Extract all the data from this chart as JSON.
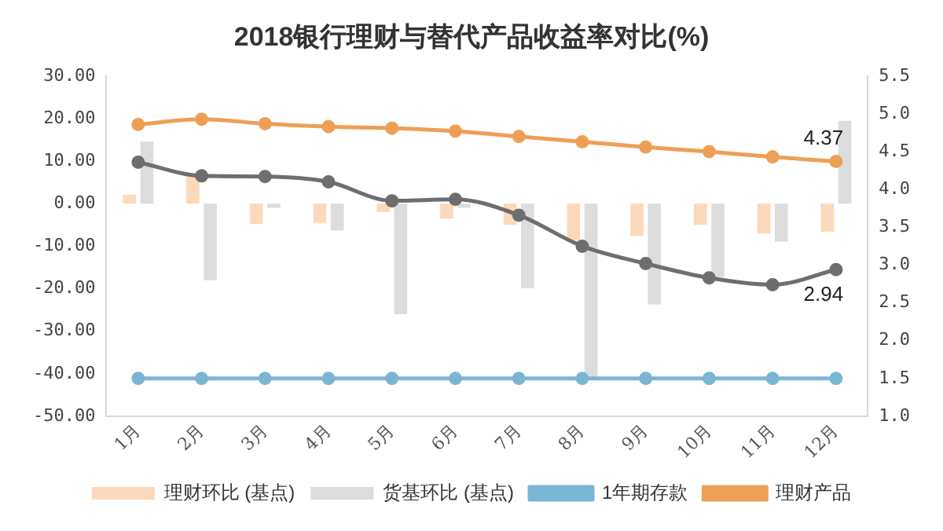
{
  "chart_data": {
    "type": "bar",
    "title": "2018银行理财与替代产品收益率对比(%)",
    "categories": [
      "1月",
      "2月",
      "3月",
      "4月",
      "5月",
      "6月",
      "7月",
      "8月",
      "9月",
      "10月",
      "11月",
      "12月"
    ],
    "series": [
      {
        "name": "理财环比 (基点)",
        "color": "#fbd9ba",
        "values": [
          2.1,
          6.6,
          -4.8,
          -4.5,
          -2,
          -3.5,
          -5,
          -9,
          -7.6,
          -5,
          -7,
          -6.6
        ]
      },
      {
        "name": "货基环比 (基点)",
        "color": "#dddddd",
        "values": [
          14.6,
          -18,
          -1,
          -6.3,
          -26,
          -1,
          -19.9,
          -41,
          -23.7,
          -17.3,
          -8.9,
          19.5
        ]
      },
      {
        "name": "1年期存款",
        "type": "line",
        "axis": "y2",
        "color": "#7ab6d4",
        "values": [
          1.5,
          1.5,
          1.5,
          1.5,
          1.5,
          1.5,
          1.5,
          1.5,
          1.5,
          1.5,
          1.5,
          1.5
        ]
      },
      {
        "name": "理财产品",
        "type": "line",
        "axis": "y2",
        "color": "#eda055",
        "values": [
          4.86,
          4.93,
          4.87,
          4.83,
          4.81,
          4.77,
          4.7,
          4.63,
          4.56,
          4.5,
          4.43,
          4.37
        ],
        "value_labels": [
          null,
          null,
          null,
          null,
          null,
          null,
          null,
          null,
          null,
          null,
          null,
          "4.37"
        ]
      },
      {
        "type": "line",
        "axis": "y2",
        "color": "#6e6e6e",
        "values": [
          4.36,
          4.18,
          4.17,
          4.1,
          3.85,
          3.87,
          3.66,
          3.25,
          3.02,
          2.83,
          2.74,
          2.94
        ],
        "value_labels": [
          null,
          null,
          null,
          null,
          null,
          null,
          null,
          null,
          null,
          null,
          null,
          "2.94"
        ]
      }
    ],
    "ylim": [
      -50,
      30
    ],
    "yticks": [
      {
        "value": -50,
        "label": "-50.00"
      },
      {
        "value": -40,
        "label": "-40.00"
      },
      {
        "value": -30,
        "label": "-30.00"
      },
      {
        "value": -20,
        "label": "-20.00"
      },
      {
        "value": -10,
        "label": "-10.00"
      },
      {
        "value": 0,
        "label": "0.00"
      },
      {
        "value": 10,
        "label": "10.00"
      },
      {
        "value": 20,
        "label": "20.00"
      },
      {
        "value": 30,
        "label": "30.00"
      }
    ],
    "y2lim": [
      1,
      5.5
    ],
    "y2ticks": [
      {
        "value": 1,
        "label": "1.0"
      },
      1.5,
      {
        "value": 2,
        "label": "2.0"
      },
      2.5,
      {
        "value": 3,
        "label": "3.0"
      },
      3.5,
      {
        "value": 4,
        "label": "4.0"
      },
      4.5,
      {
        "value": 5,
        "label": "5.0"
      },
      5.5
    ],
    "grid": false,
    "legend": "bottom",
    "marker": "circle",
    "line_style": "solid"
  }
}
